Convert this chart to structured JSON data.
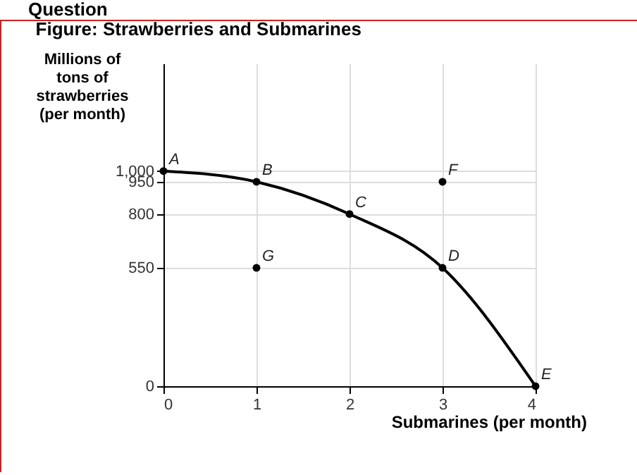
{
  "chart_data": {
    "type": "line",
    "title": "Figure: Strawberries and Submarines",
    "xlabel": "Submarines (per month)",
    "ylabel": "Millions of tons of strawberries (per month)",
    "annotations": [
      "Question",
      {
        "text": "A",
        "x": 0,
        "y": 1000
      },
      {
        "text": "B",
        "x": 1,
        "y": 950
      },
      {
        "text": "C",
        "x": 2,
        "y": 800
      },
      {
        "text": "D",
        "x": 3,
        "y": 550
      },
      {
        "text": "E",
        "x": 4,
        "y": 0
      },
      {
        "text": "F",
        "x": 3,
        "y": 950
      },
      {
        "text": "G",
        "x": 1,
        "y": 550
      }
    ],
    "series": [
      {
        "color": "#000000",
        "x": [
          0,
          1,
          2,
          3,
          4
        ],
        "values": [
          1000,
          950,
          800,
          550,
          0
        ]
      },
      {
        "type": "scatter",
        "color": "#000000",
        "x": [
          1,
          3
        ],
        "values": [
          550,
          950
        ]
      }
    ],
    "marker": "circle",
    "xlim": [
      0,
      4
    ],
    "xticks": [
      0,
      1,
      2,
      3,
      4
    ],
    "ylim": [
      0,
      1500
    ],
    "yticks": [
      0,
      550,
      800,
      950,
      {
        "value": 1000,
        "label": "1,000"
      }
    ],
    "grid": true
  }
}
